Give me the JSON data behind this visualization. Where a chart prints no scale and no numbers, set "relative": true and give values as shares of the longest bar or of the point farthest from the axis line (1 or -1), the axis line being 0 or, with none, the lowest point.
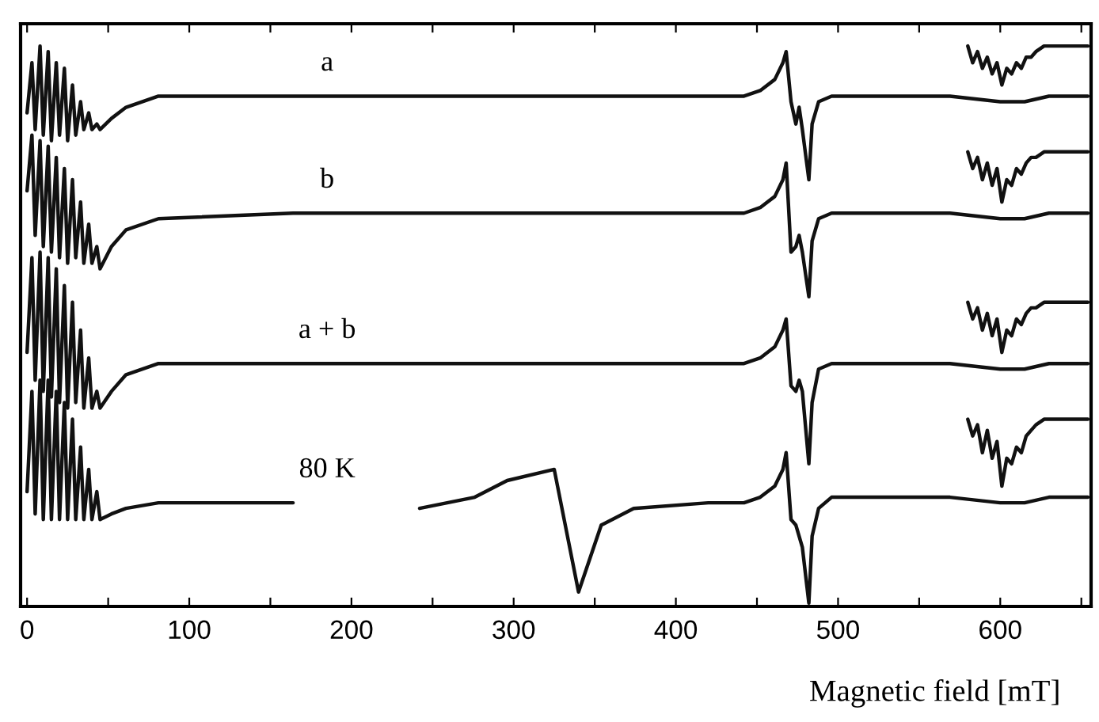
{
  "chart_data": {
    "type": "line",
    "relative": true,
    "xlabel": "Magnetic field [mT]",
    "xlim": [
      -4,
      656
    ],
    "xticks": [
      0,
      {
        "value": 50,
        "label": null
      },
      100,
      {
        "value": 150,
        "label": null
      },
      200,
      {
        "value": 250,
        "label": null
      },
      300,
      {
        "value": 350,
        "label": null
      },
      400,
      {
        "value": 450,
        "label": null
      },
      500,
      {
        "value": 550,
        "label": null
      },
      600,
      {
        "value": 650,
        "label": null
      }
    ],
    "x": [
      0,
      3,
      5,
      8,
      10,
      13,
      15,
      18,
      20,
      23,
      25,
      28,
      30,
      33,
      35,
      38,
      40,
      43,
      45,
      52,
      61,
      81,
      164,
      200,
      242,
      276,
      296,
      325,
      340,
      354,
      374,
      420,
      442,
      452,
      461,
      466,
      468,
      471,
      474,
      476,
      478,
      482,
      484,
      488,
      496,
      530,
      569,
      600,
      615,
      630,
      654
    ],
    "series": [
      {
        "name": "a",
        "color": "#111111",
        "values": [
          0.88,
          0.97,
          0.85,
          1.0,
          0.84,
          0.99,
          0.83,
          0.97,
          0.84,
          0.96,
          0.83,
          0.93,
          0.84,
          0.9,
          0.85,
          0.88,
          0.85,
          0.86,
          0.85,
          0.87,
          0.89,
          0.91,
          0.91,
          0.91,
          0.91,
          0.91,
          0.91,
          0.91,
          0.91,
          0.91,
          0.91,
          0.91,
          0.91,
          0.92,
          0.94,
          0.97,
          0.99,
          0.9,
          0.86,
          0.89,
          0.85,
          0.76,
          0.86,
          0.9,
          0.91,
          0.91,
          0.91,
          0.9,
          0.9,
          0.91,
          0.91
        ]
      },
      {
        "name": "b",
        "color": "#111111",
        "values": [
          0.74,
          0.84,
          0.66,
          0.83,
          0.64,
          0.82,
          0.63,
          0.8,
          0.62,
          0.78,
          0.61,
          0.76,
          0.62,
          0.72,
          0.61,
          0.68,
          0.61,
          0.64,
          0.6,
          0.64,
          0.67,
          0.69,
          0.7,
          0.7,
          0.7,
          0.7,
          0.7,
          0.7,
          0.7,
          0.7,
          0.7,
          0.7,
          0.7,
          0.71,
          0.73,
          0.76,
          0.79,
          0.63,
          0.64,
          0.66,
          0.63,
          0.55,
          0.65,
          0.69,
          0.7,
          0.7,
          0.7,
          0.69,
          0.69,
          0.7,
          0.7
        ]
      },
      {
        "name": "a + b",
        "color": "#111111",
        "values": [
          0.45,
          0.62,
          0.4,
          0.63,
          0.38,
          0.62,
          0.37,
          0.6,
          0.36,
          0.57,
          0.35,
          0.54,
          0.36,
          0.49,
          0.35,
          0.44,
          0.35,
          0.38,
          0.35,
          0.38,
          0.41,
          0.43,
          0.43,
          0.43,
          0.43,
          0.43,
          0.43,
          0.43,
          0.43,
          0.43,
          0.43,
          0.43,
          0.43,
          0.44,
          0.46,
          0.49,
          0.51,
          0.39,
          0.38,
          0.4,
          0.38,
          0.25,
          0.36,
          0.42,
          0.43,
          0.43,
          0.43,
          0.42,
          0.42,
          0.43,
          0.43
        ]
      },
      {
        "name": "80 K",
        "color": "#111111",
        "values": [
          0.2,
          0.38,
          0.16,
          0.4,
          0.15,
          0.4,
          0.15,
          0.38,
          0.15,
          0.36,
          0.15,
          0.33,
          0.15,
          0.28,
          0.15,
          0.24,
          0.15,
          0.2,
          0.15,
          0.16,
          0.17,
          0.18,
          0.18,
          null,
          0.17,
          0.19,
          0.22,
          0.24,
          0.02,
          0.14,
          0.17,
          0.18,
          0.18,
          0.19,
          0.21,
          0.24,
          0.27,
          0.15,
          0.14,
          0.12,
          0.1,
          0.0,
          0.12,
          0.17,
          0.19,
          0.19,
          0.19,
          0.18,
          0.18,
          0.19,
          0.19
        ]
      },
      {
        "color": "#111111",
        "x": [
          580,
          583,
          586,
          589,
          592,
          595,
          598,
          601,
          604,
          607,
          610,
          613,
          616,
          619,
          622,
          627,
          640,
          654
        ],
        "values": [
          1.0,
          0.97,
          0.99,
          0.96,
          0.98,
          0.95,
          0.97,
          0.93,
          0.96,
          0.95,
          0.97,
          0.96,
          0.98,
          0.98,
          0.99,
          1.0,
          1.0,
          1.0
        ]
      },
      {
        "color": "#111111",
        "x": [
          580,
          583,
          586,
          589,
          592,
          595,
          598,
          601,
          604,
          607,
          610,
          613,
          616,
          619,
          622,
          627,
          640,
          654
        ],
        "values": [
          0.81,
          0.78,
          0.8,
          0.76,
          0.79,
          0.75,
          0.78,
          0.72,
          0.76,
          0.75,
          0.78,
          0.77,
          0.79,
          0.8,
          0.8,
          0.81,
          0.81,
          0.81
        ]
      },
      {
        "color": "#111111",
        "x": [
          580,
          583,
          586,
          589,
          592,
          595,
          598,
          601,
          604,
          607,
          610,
          613,
          616,
          619,
          622,
          627,
          640,
          654
        ],
        "values": [
          0.54,
          0.51,
          0.53,
          0.49,
          0.52,
          0.48,
          0.51,
          0.45,
          0.49,
          0.48,
          0.51,
          0.5,
          0.52,
          0.53,
          0.53,
          0.54,
          0.54,
          0.54
        ]
      },
      {
        "color": "#111111",
        "x": [
          580,
          583,
          586,
          589,
          592,
          595,
          598,
          601,
          604,
          607,
          610,
          613,
          616,
          619,
          622,
          627,
          640,
          654
        ],
        "values": [
          0.33,
          0.3,
          0.32,
          0.27,
          0.31,
          0.26,
          0.29,
          0.21,
          0.26,
          0.25,
          0.28,
          0.27,
          0.3,
          0.31,
          0.32,
          0.33,
          0.33,
          0.33
        ]
      }
    ]
  }
}
